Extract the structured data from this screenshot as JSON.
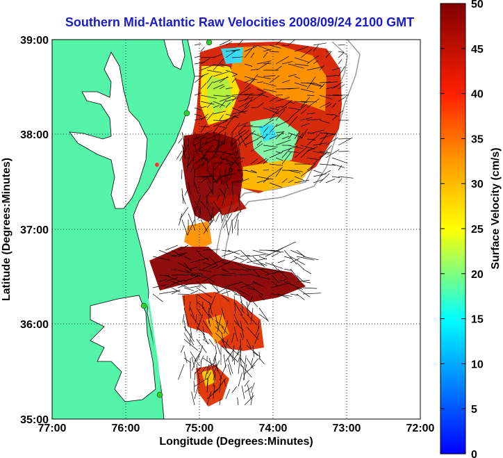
{
  "title": "Southern Mid-Atlantic Raw Velocities 2008/09/24 2100 GMT",
  "x_axis": {
    "label": "Longitude (Degrees:Minutes)",
    "ticks": [
      "77:00",
      "76:00",
      "75:00",
      "74:00",
      "73:00",
      "72:00"
    ]
  },
  "y_axis": {
    "label": "Latitude (Degrees:Minutes)",
    "ticks": [
      "39:00",
      "38:00",
      "37:00",
      "36:00",
      "35:00"
    ]
  },
  "colorbar": {
    "label": "Surface Velocity (cm/s)",
    "ticks": [
      "50",
      "45",
      "40",
      "35",
      "30",
      "25",
      "20",
      "15",
      "10",
      "5",
      "0"
    ],
    "range": [
      0,
      50
    ],
    "colormap": "jet"
  },
  "map": {
    "extent": {
      "lon": [
        -77,
        -72
      ],
      "lat": [
        35,
        39
      ]
    },
    "grid": "dotted",
    "land_color": "#55f5a9",
    "water_color": "#ffffff",
    "station_color": "#33cc33",
    "highlight_station_color": "#ff3333"
  }
}
